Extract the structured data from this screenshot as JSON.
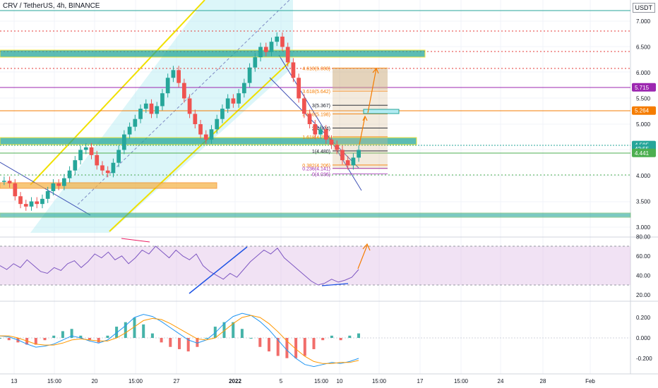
{
  "header": {
    "symbol": "CRV / TetherUS, 4h, BINANCE",
    "currency": "USDT"
  },
  "chart_data": {
    "type": "candlestick",
    "x_ticks": [
      "13",
      "15:00",
      "20",
      "15:00",
      "27",
      "2022",
      "5",
      "15:00",
      "10",
      "15:00",
      "17",
      "15:00",
      "24",
      "28",
      "Feb"
    ],
    "price_axis": {
      "ticks": [
        "7.000",
        "6.500",
        "6.000",
        "5.500",
        "5.000",
        "4.500",
        "4.000",
        "3.500",
        "3.000"
      ],
      "ylim": [
        3.0,
        7.2
      ],
      "badges": [
        {
          "label": "5.715",
          "value": 5.715,
          "color": "#9c27b0"
        },
        {
          "label": "5.264",
          "value": 5.264,
          "color": "#f57c00"
        },
        {
          "label": "4.595",
          "value": 4.595,
          "color": "#26a69a"
        },
        {
          "label": "42:55",
          "value": 4.52,
          "color": "#26a69a"
        },
        {
          "label": "4.441",
          "value": 4.441,
          "color": "#4caf50"
        }
      ]
    },
    "fib_levels": [
      {
        "label": "4.618(6.088)",
        "value": 6.088,
        "color": "#f57c00"
      },
      {
        "label": "3.618(5.642)",
        "value": 5.642,
        "color": "#f57c00"
      },
      {
        "label": "3(5.367)",
        "value": 5.367,
        "color": "#131722"
      },
      {
        "label": "2.618(5.198)",
        "value": 5.198,
        "color": "#f57c00"
      },
      {
        "label": "2(4.924)",
        "value": 4.924,
        "color": "#131722"
      },
      {
        "label": "1.618(4.755)",
        "value": 4.755,
        "color": "#f57c00"
      },
      {
        "label": "1(4.480)",
        "value": 4.48,
        "color": "#131722"
      },
      {
        "label": "0.382(4.206)",
        "value": 4.206,
        "color": "#f57c00"
      },
      {
        "label": "0.236(4.141)",
        "value": 4.141,
        "color": "#9c27b0"
      },
      {
        "label": "0(4.036)",
        "value": 4.036,
        "color": "#9c27b0"
      }
    ],
    "rsi": {
      "ticks": [
        "80.00",
        "60.00",
        "40.00",
        "20.00"
      ],
      "ylim": [
        15,
        85
      ],
      "band": [
        30,
        70
      ],
      "values": [
        50,
        46,
        52,
        48,
        56,
        50,
        44,
        42,
        48,
        45,
        52,
        55,
        48,
        54,
        62,
        58,
        64,
        56,
        60,
        52,
        58,
        66,
        62,
        70,
        64,
        58,
        66,
        60,
        56,
        62,
        50,
        44,
        40,
        36,
        42,
        38,
        46,
        54,
        60,
        66,
        62,
        68,
        58,
        52,
        46,
        40,
        34,
        30,
        32,
        36,
        33,
        35,
        38,
        46
      ]
    },
    "macd": {
      "ticks": [
        "0.200",
        "0.000",
        "-0.200"
      ],
      "ylim": [
        -0.32,
        0.3
      ],
      "macd_values": [
        0.02,
        0.01,
        -0.02,
        -0.06,
        -0.09,
        -0.08,
        -0.06,
        -0.02,
        0.02,
        0.0,
        -0.03,
        -0.05,
        -0.02,
        0.05,
        0.12,
        0.2,
        0.23,
        0.21,
        0.16,
        0.1,
        0.04,
        -0.02,
        -0.05,
        -0.02,
        0.05,
        0.14,
        0.21,
        0.24,
        0.22,
        0.16,
        0.08,
        -0.02,
        -0.12,
        -0.2,
        -0.26,
        -0.28,
        -0.26,
        -0.24,
        -0.25,
        -0.23,
        -0.2
      ],
      "signal_values": [
        0.02,
        0.02,
        0.0,
        -0.03,
        -0.06,
        -0.07,
        -0.07,
        -0.05,
        -0.02,
        -0.01,
        -0.02,
        -0.03,
        -0.03,
        0.0,
        0.05,
        0.11,
        0.17,
        0.19,
        0.18,
        0.14,
        0.09,
        0.04,
        -0.01,
        -0.02,
        0.0,
        0.07,
        0.14,
        0.2,
        0.22,
        0.2,
        0.14,
        0.06,
        -0.03,
        -0.11,
        -0.18,
        -0.23,
        -0.25,
        -0.25,
        -0.24,
        -0.24,
        -0.22
      ]
    }
  }
}
